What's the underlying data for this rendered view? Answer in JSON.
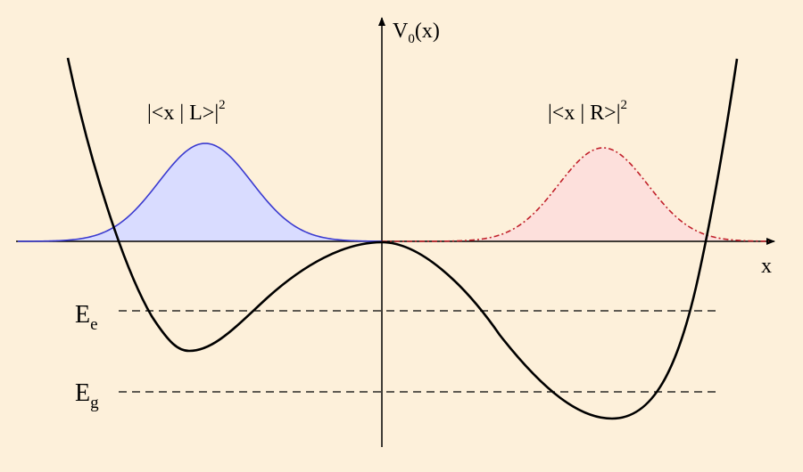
{
  "diagram": {
    "axes": {
      "y_label": "V",
      "y_label_sub": "0",
      "y_label_tail": "(x)",
      "x_label": "x"
    },
    "wavefunctions": {
      "left": {
        "prefix": "|<x | L>|",
        "superscript": "2",
        "fill_color": "#d9dcff",
        "line_color": "#3a3ad0"
      },
      "right": {
        "prefix": "|<x | R>|",
        "superscript": "2",
        "fill_color": "#fde0dc",
        "line_color": "#c0202a"
      }
    },
    "energy_levels": [
      {
        "letter": "E",
        "subscript": "e"
      },
      {
        "letter": "E",
        "subscript": "g"
      }
    ],
    "colors": {
      "background": "#fdf0da",
      "potential_curve": "#000000",
      "dashed_levels": "#000000"
    }
  }
}
